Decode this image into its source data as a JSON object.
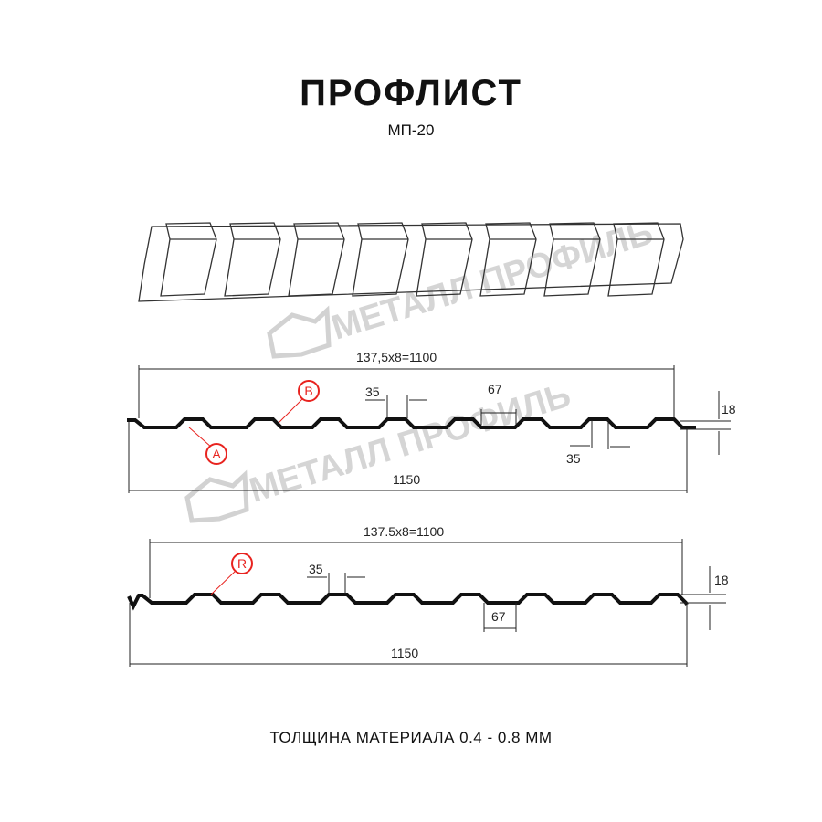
{
  "title": "ПРОФЛИСТ",
  "model": "МП-20",
  "footer": "ТОЛЩИНА МАТЕРИАЛА 0.4 - 0.8 ММ",
  "watermark": "МЕТАЛЛ ПРОФИЛЬ",
  "colors": {
    "profile": "#111111",
    "callout": "#e8231f",
    "watermark": "#c8c8c8"
  },
  "profile_a": {
    "pitch_label": "137,5x8=1100",
    "width_label": "1150",
    "rib_top": "35",
    "rib_top_bottom": "35",
    "valley": "67",
    "height": "18",
    "markers": [
      "A",
      "B"
    ]
  },
  "profile_b": {
    "pitch_label": "137.5x8=1100",
    "width_label": "1150",
    "rib_top": "35",
    "valley": "67",
    "height": "18",
    "markers": [
      "R"
    ]
  }
}
